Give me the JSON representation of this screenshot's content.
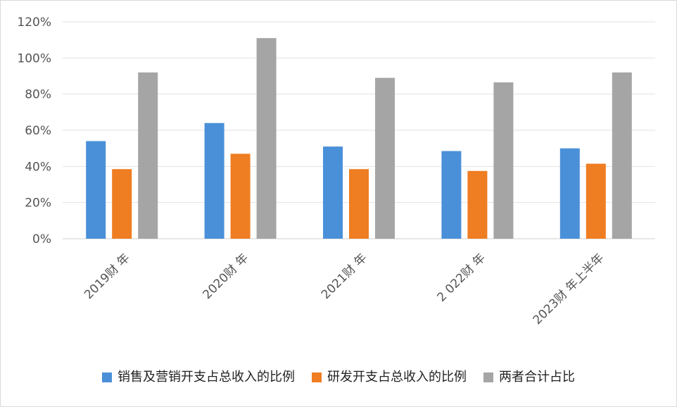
{
  "chart_data": {
    "type": "bar",
    "categories": [
      "2019财 年",
      "2020财 年",
      "2021财 年",
      "2 022财 年",
      "2023财 年上半年"
    ],
    "series": [
      {
        "name": "销售及营销开支占总收入的比例",
        "color": "#4a90d9",
        "values": [
          54,
          64,
          51,
          48.5,
          50
        ]
      },
      {
        "name": "研发开支占总收入的比例",
        "color": "#ef7d22",
        "values": [
          38.5,
          47,
          38.5,
          37.5,
          41.5
        ]
      },
      {
        "name": "两者合计占比",
        "color": "#a5a5a5",
        "values": [
          92,
          111,
          89,
          86.5,
          92
        ]
      }
    ],
    "ylim": [
      0,
      120
    ],
    "yticks": [
      "0%",
      "20%",
      "40%",
      "60%",
      "80%",
      "100%",
      "120%"
    ],
    "grid": true,
    "legend": "bottom"
  }
}
